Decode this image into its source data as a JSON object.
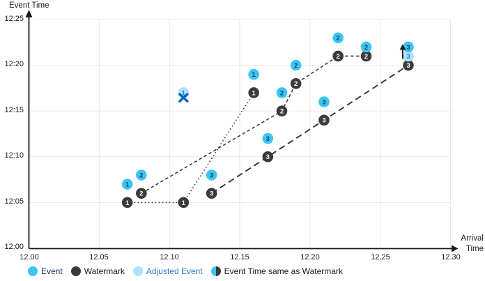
{
  "chart_data": {
    "type": "scatter",
    "title": "",
    "ylabel": "Event Time",
    "xlabel_line1": "Arrival",
    "xlabel_line2": "Time",
    "xlim": [
      12.0,
      12.3
    ],
    "ylim_minutes": [
      0,
      25
    ],
    "grid": true,
    "x_ticks": [
      {
        "value": 12.0,
        "label": "12.00"
      },
      {
        "value": 12.05,
        "label": "12.05"
      },
      {
        "value": 12.1,
        "label": "12.10"
      },
      {
        "value": 12.15,
        "label": "12.15"
      },
      {
        "value": 12.2,
        "label": "12.20"
      },
      {
        "value": 12.25,
        "label": "12.25"
      },
      {
        "value": 12.3,
        "label": "12.30"
      }
    ],
    "y_ticks": [
      {
        "value": 0,
        "label": "12:00"
      },
      {
        "value": 5,
        "label": "12:05"
      },
      {
        "value": 10,
        "label": "12:10"
      },
      {
        "value": 15,
        "label": "12:15"
      },
      {
        "value": 20,
        "label": "12:20"
      },
      {
        "value": 25,
        "label": "12:25"
      }
    ],
    "events": [
      {
        "n": "1",
        "x": 12.07,
        "y": 7
      },
      {
        "n": "2",
        "x": 12.08,
        "y": 8
      },
      {
        "n": "3",
        "x": 12.13,
        "y": 8
      },
      {
        "n": "1",
        "x": 12.16,
        "y": 19
      },
      {
        "n": "3",
        "x": 12.17,
        "y": 12
      },
      {
        "n": "2",
        "x": 12.18,
        "y": 17
      },
      {
        "n": "2",
        "x": 12.19,
        "y": 20
      },
      {
        "n": "3",
        "x": 12.21,
        "y": 16
      },
      {
        "n": "2",
        "x": 12.22,
        "y": 23
      },
      {
        "n": "2",
        "x": 12.24,
        "y": 22
      },
      {
        "n": "3",
        "x": 12.27,
        "y": 22
      }
    ],
    "watermarks": [
      {
        "n": "1",
        "x": 12.07,
        "y": 5
      },
      {
        "n": "2",
        "x": 12.08,
        "y": 6
      },
      {
        "n": "1",
        "x": 12.11,
        "y": 5
      },
      {
        "n": "3",
        "x": 12.13,
        "y": 6
      },
      {
        "n": "1",
        "x": 12.16,
        "y": 17
      },
      {
        "n": "3",
        "x": 12.17,
        "y": 10
      },
      {
        "n": "2",
        "x": 12.18,
        "y": 15
      },
      {
        "n": "2",
        "x": 12.19,
        "y": 18
      },
      {
        "n": "3",
        "x": 12.21,
        "y": 14
      },
      {
        "n": "2",
        "x": 12.22,
        "y": 21
      },
      {
        "n": "2",
        "x": 12.24,
        "y": 21
      },
      {
        "n": "3",
        "x": 12.27,
        "y": 20
      }
    ],
    "adjusted_events": [
      {
        "n": "1",
        "x": 12.11,
        "y": 17
      },
      {
        "n": "3",
        "x": 12.27,
        "y": 21
      }
    ],
    "watermark_lines": [
      {
        "id": "watermark-1-line",
        "dash": "dotted",
        "points": [
          [
            12.07,
            5
          ],
          [
            12.11,
            5
          ],
          [
            12.16,
            17
          ]
        ]
      },
      {
        "id": "watermark-2-line",
        "dash": "dashed",
        "points": [
          [
            12.08,
            6
          ],
          [
            12.18,
            15
          ],
          [
            12.19,
            18
          ],
          [
            12.22,
            21
          ],
          [
            12.24,
            21
          ]
        ]
      },
      {
        "id": "watermark-3-line",
        "dash": "long-dash",
        "points": [
          [
            12.13,
            6
          ],
          [
            12.27,
            20
          ]
        ]
      }
    ],
    "annotations": {
      "dropped_event_cross": {
        "x": 12.11,
        "y": 16.45
      },
      "adjust_up_arrow": {
        "x": 12.266,
        "y_from": 20.7,
        "y_to": 22.3
      }
    },
    "colors": {
      "event": "#3BC6F2",
      "watermark": "#3B3B3D",
      "adjusted_event": "#ADE4F7",
      "event_number": "#17365D",
      "watermark_number": "#FFFFFF",
      "adjusted_number": "#2B7CD3",
      "dropped_cross": "#1565C0",
      "axis": "#1A1A1A",
      "gridline": "#E8E8E8",
      "line": "#3B3B3D"
    }
  },
  "legend": {
    "items": [
      {
        "label": "Event",
        "icon": "event",
        "text_color": "#17365D"
      },
      {
        "label": "Watermark",
        "icon": "watermark",
        "text_color": "#1A1A1A"
      },
      {
        "label": "Adjusted Event",
        "icon": "adjusted",
        "text_color": "#2B7CD3"
      },
      {
        "label": "Event Time same as Watermark",
        "icon": "half",
        "text_color": "#1A1A1A"
      }
    ]
  }
}
